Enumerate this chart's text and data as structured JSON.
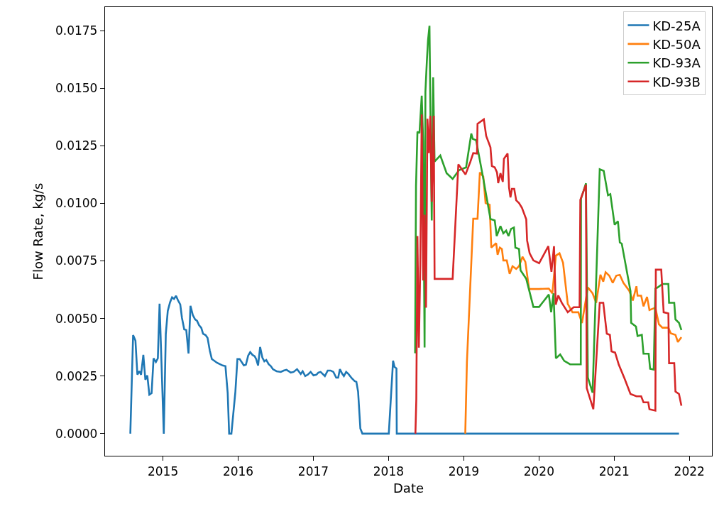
{
  "chart_data": {
    "type": "line",
    "xlabel": "Date",
    "ylabel": "Flow Rate, kg/s",
    "xlim": [
      2014.23,
      2022.3
    ],
    "xticks": [
      2015,
      2016,
      2017,
      2018,
      2019,
      2020,
      2021,
      2022
    ],
    "ylim": [
      -0.00096,
      0.01852
    ],
    "yticks": [
      {
        "value": 0,
        "label": "0.0000"
      },
      {
        "value": 0.0025,
        "label": "0.0025"
      },
      {
        "value": 0.005,
        "label": "0.0050"
      },
      {
        "value": 0.0075,
        "label": "0.0075"
      },
      {
        "value": 0.01,
        "label": "0.0100"
      },
      {
        "value": 0.0125,
        "label": "0.0125"
      },
      {
        "value": 0.015,
        "label": "0.0150"
      },
      {
        "value": 0.0175,
        "label": "0.0175"
      }
    ],
    "grid": false,
    "legend": "top right",
    "marker": "none",
    "line_style": "solid",
    "series": [
      {
        "name": "KD-25A",
        "color": "#1f77b4",
        "x": [
          2014.566,
          2014.603,
          2014.634,
          2014.66,
          2014.686,
          2014.709,
          2014.739,
          2014.766,
          2014.792,
          2014.819,
          2014.849,
          2014.875,
          2014.906,
          2014.932,
          2014.955,
          2015.011,
          2015.038,
          2015.064,
          2015.094,
          2015.121,
          2015.147,
          2015.174,
          2015.2,
          2015.23,
          2015.253,
          2015.283,
          2015.31,
          2015.34,
          2015.366,
          2015.397,
          2015.427,
          2015.453,
          2015.48,
          2015.51,
          2015.533,
          2015.567,
          2015.593,
          2015.623,
          2015.65,
          2015.68,
          2015.718,
          2015.755,
          2015.793,
          2015.831,
          2015.861,
          2015.88,
          2015.91,
          2015.963,
          2015.99,
          2016.02,
          2016.076,
          2016.103,
          2016.133,
          2016.16,
          2016.19,
          2016.22,
          2016.239,
          2016.265,
          2016.292,
          2016.322,
          2016.348,
          2016.374,
          2016.405,
          2016.435,
          2016.462,
          2016.511,
          2016.567,
          2016.605,
          2016.643,
          2016.7,
          2016.737,
          2016.783,
          2016.832,
          2016.858,
          2016.892,
          2016.926,
          2016.964,
          2017.002,
          2017.04,
          2017.066,
          2017.096,
          2017.153,
          2017.191,
          2017.229,
          2017.266,
          2017.304,
          2017.33,
          2017.353,
          2017.38,
          2017.406,
          2017.436,
          2017.467,
          2017.512,
          2017.55,
          2017.572,
          2017.595,
          2017.625,
          2017.652,
          2018.003,
          2018.06,
          2018.079,
          2018.105,
          2018.109,
          2021.862
        ],
        "values": [
          0,
          0.00428,
          0.00404,
          0.00256,
          0.00271,
          0.00256,
          0.00342,
          0.00234,
          0.00253,
          0.00169,
          0.00176,
          0.00327,
          0.00311,
          0.00327,
          0.00564,
          0,
          0.00434,
          0.00533,
          0.0057,
          0.00592,
          0.00585,
          0.00598,
          0.00579,
          0.00561,
          0.00502,
          0.00453,
          0.0045,
          0.00348,
          0.00555,
          0.00515,
          0.00496,
          0.0049,
          0.00471,
          0.00459,
          0.00434,
          0.00428,
          0.00416,
          0.0036,
          0.00324,
          0.00317,
          0.00308,
          0.00302,
          0.00296,
          0.00293,
          0.00176,
          0,
          0,
          0.00182,
          0.00324,
          0.00324,
          0.00296,
          0.00299,
          0.00339,
          0.00354,
          0.00342,
          0.00336,
          0.00324,
          0.00296,
          0.00376,
          0.0033,
          0.00314,
          0.0032,
          0.00302,
          0.00293,
          0.0028,
          0.00271,
          0.00268,
          0.00274,
          0.00277,
          0.00265,
          0.00268,
          0.0028,
          0.00259,
          0.00271,
          0.0025,
          0.00256,
          0.00268,
          0.00253,
          0.00256,
          0.00265,
          0.00268,
          0.0025,
          0.00274,
          0.00274,
          0.00268,
          0.00243,
          0.00243,
          0.0028,
          0.00262,
          0.0025,
          0.00268,
          0.00259,
          0.0024,
          0.00228,
          0.00225,
          0.00182,
          0.00022,
          0,
          0,
          0.00317,
          0.0029,
          0.00283,
          0,
          0
        ]
      },
      {
        "name": "KD-50A",
        "color": "#ff7f0e",
        "x": [
          2019.02,
          2019.042,
          2019.126,
          2019.183,
          2019.214,
          2019.26,
          2019.29,
          2019.344,
          2019.366,
          2019.431,
          2019.45,
          2019.48,
          2019.507,
          2019.526,
          2019.572,
          2019.61,
          2019.648,
          2019.697,
          2019.735,
          2019.781,
          2019.819,
          2019.869,
          2020.002,
          2020.131,
          2020.178,
          2020.225,
          2020.273,
          2020.32,
          2020.383,
          2020.446,
          2020.524,
          2020.572,
          2020.65,
          2020.713,
          2020.761,
          2020.817,
          2020.855,
          2020.886,
          2020.934,
          2020.981,
          2021.028,
          2021.075,
          2021.122,
          2021.201,
          2021.248,
          2021.296,
          2021.311,
          2021.359,
          2021.39,
          2021.437,
          2021.469,
          2021.548,
          2021.595,
          2021.642,
          2021.721,
          2021.752,
          2021.815,
          2021.847,
          2021.894
        ],
        "values": [
          0,
          0.00311,
          0.00933,
          0.00933,
          0.01134,
          0.01116,
          0.01001,
          0.00994,
          0.00808,
          0.00827,
          0.00777,
          0.00808,
          0.00802,
          0.00752,
          0.00752,
          0.00694,
          0.00727,
          0.00715,
          0.00727,
          0.00768,
          0.00746,
          0.00628,
          0.00628,
          0.0063,
          0.00609,
          0.00773,
          0.00783,
          0.00742,
          0.00563,
          0.00527,
          0.00527,
          0.0048,
          0.00635,
          0.00609,
          0.00568,
          0.0069,
          0.0066,
          0.00701,
          0.00686,
          0.00655,
          0.00686,
          0.00689,
          0.00655,
          0.0062,
          0.00578,
          0.0064,
          0.00599,
          0.00599,
          0.00553,
          0.00594,
          0.00537,
          0.00547,
          0.00475,
          0.0046,
          0.0046,
          0.00436,
          0.00429,
          0.00398,
          0.00419
        ]
      },
      {
        "name": "KD-93A",
        "color": "#2ca02c",
        "x": [
          2018.353,
          2018.365,
          2018.384,
          2018.411,
          2018.441,
          2018.46,
          2018.479,
          2018.49,
          2018.509,
          2018.525,
          2018.544,
          2018.559,
          2018.574,
          2018.593,
          2018.612,
          2018.688,
          2018.772,
          2018.852,
          2018.936,
          2019.031,
          2019.1,
          2019.119,
          2019.164,
          2019.26,
          2019.355,
          2019.412,
          2019.438,
          2019.488,
          2019.526,
          2019.564,
          2019.595,
          2019.629,
          2019.667,
          2019.686,
          2019.735,
          2019.755,
          2019.831,
          2019.926,
          2020.002,
          2020.131,
          2020.162,
          2020.194,
          2020.225,
          2020.282,
          2020.336,
          2020.414,
          2020.556,
          2020.559,
          2020.625,
          2020.65,
          2020.713,
          2020.808,
          2020.861,
          2020.918,
          2020.949,
          2021.006,
          2021.05,
          2021.075,
          2021.101,
          2021.217,
          2021.226,
          2021.29,
          2021.311,
          2021.368,
          2021.39,
          2021.459,
          2021.478,
          2021.526,
          2021.548,
          2021.579,
          2021.642,
          2021.721,
          2021.73,
          2021.799,
          2021.815,
          2021.862,
          2021.894
        ],
        "values": [
          0.00349,
          0.01075,
          0.01311,
          0.01305,
          0.01467,
          0.01268,
          0.00374,
          0.01485,
          0.01616,
          0.01709,
          0.01771,
          0.0133,
          0.00926,
          0.01547,
          0.01181,
          0.01208,
          0.01131,
          0.01106,
          0.01144,
          0.01156,
          0.01303,
          0.0128,
          0.01274,
          0.01106,
          0.00932,
          0.00926,
          0.00858,
          0.00901,
          0.0087,
          0.00882,
          0.00858,
          0.00889,
          0.00895,
          0.00808,
          0.00802,
          0.00709,
          0.00672,
          0.0055,
          0.0055,
          0.00604,
          0.00527,
          0.00609,
          0.00327,
          0.00344,
          0.00316,
          0.00301,
          0.00301,
          0.0102,
          0.01087,
          0.00244,
          0.00178,
          0.01148,
          0.01141,
          0.01035,
          0.0104,
          0.00907,
          0.00922,
          0.0083,
          0.00825,
          0.00619,
          0.00481,
          0.00465,
          0.00424,
          0.00429,
          0.00347,
          0.00347,
          0.00282,
          0.00278,
          0.0063,
          0.00635,
          0.0065,
          0.0065,
          0.00568,
          0.00568,
          0.00496,
          0.00481,
          0.0045
        ]
      },
      {
        "name": "KD-93B",
        "color": "#d62728",
        "x": [
          2018.357,
          2018.369,
          2018.384,
          2018.403,
          2018.422,
          2018.441,
          2018.46,
          2018.479,
          2018.498,
          2018.517,
          2018.536,
          2018.555,
          2018.574,
          2018.601,
          2018.612,
          2018.852,
          2018.928,
          2019.023,
          2019.088,
          2019.126,
          2019.176,
          2019.183,
          2019.267,
          2019.298,
          2019.355,
          2019.374,
          2019.412,
          2019.442,
          2019.458,
          2019.488,
          2019.519,
          2019.534,
          2019.583,
          2019.602,
          2019.621,
          2019.64,
          2019.671,
          2019.697,
          2019.735,
          2019.774,
          2019.831,
          2019.842,
          2019.876,
          2019.926,
          2020.002,
          2020.124,
          2020.166,
          2020.2,
          2020.223,
          2020.257,
          2020.304,
          2020.383,
          2020.461,
          2020.54,
          2020.55,
          2020.625,
          2020.635,
          2020.723,
          2020.808,
          2020.855,
          2020.902,
          2020.943,
          2020.965,
          2021.012,
          2021.06,
          2021.138,
          2021.217,
          2021.296,
          2021.359,
          2021.39,
          2021.453,
          2021.469,
          2021.548,
          2021.554,
          2021.626,
          2021.658,
          2021.721,
          2021.73,
          2021.799,
          2021.815,
          2021.862,
          2021.894
        ],
        "values": [
          0,
          0.0015,
          0.00858,
          0.00373,
          0.00734,
          0.01386,
          0.00665,
          0.0095,
          0.00547,
          0.01367,
          0.01218,
          0.0138,
          0.01007,
          0.0138,
          0.00672,
          0.00672,
          0.01169,
          0.01125,
          0.01181,
          0.01218,
          0.01216,
          0.01345,
          0.01365,
          0.01293,
          0.01243,
          0.01162,
          0.01156,
          0.01134,
          0.01088,
          0.01131,
          0.01093,
          0.01193,
          0.01216,
          0.01069,
          0.01026,
          0.01063,
          0.01063,
          0.01013,
          0.01001,
          0.0098,
          0.0093,
          0.00839,
          0.00783,
          0.00752,
          0.0074,
          0.00814,
          0.00703,
          0.00814,
          0.0056,
          0.006,
          0.00568,
          0.00527,
          0.00549,
          0.00549,
          0.01015,
          0.01081,
          0.00198,
          0.00106,
          0.00568,
          0.00568,
          0.00434,
          0.00429,
          0.00357,
          0.00352,
          0.00301,
          0.00239,
          0.00172,
          0.00162,
          0.00162,
          0.00136,
          0.00136,
          0.00106,
          0.001,
          0.00712,
          0.00712,
          0.00527,
          0.00522,
          0.00306,
          0.00306,
          0.00183,
          0.00172,
          0.00121
        ]
      }
    ]
  }
}
